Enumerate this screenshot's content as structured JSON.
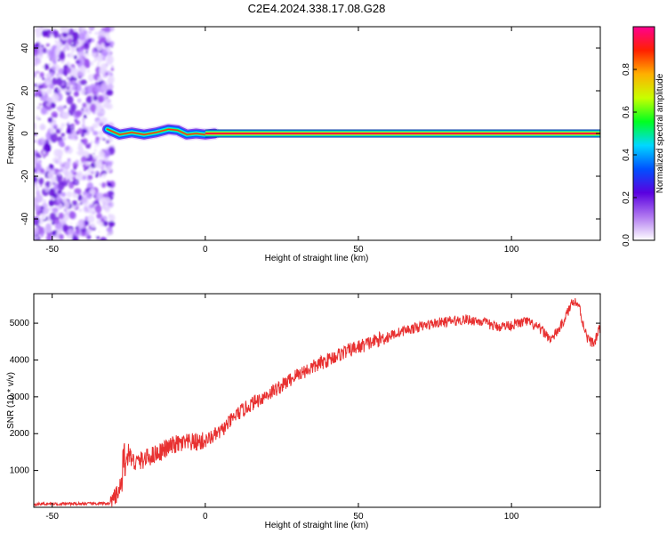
{
  "figure_title": "C2E4.2024.338.17.08.G28",
  "chart_data": [
    {
      "type": "heatmap",
      "xlabel": "Height of straight line (km)",
      "ylabel": "Frequency (Hz)",
      "xlim": [
        -56,
        129
      ],
      "ylim": [
        -50,
        50
      ],
      "x_ticks": [
        -50,
        0,
        50,
        100
      ],
      "x_tick_labels": [
        "-50",
        "0",
        "50",
        "100"
      ],
      "y_ticks": [
        -40,
        -20,
        0,
        20,
        40
      ],
      "y_tick_labels": [
        "-40",
        "-20",
        "0",
        "20",
        "40"
      ],
      "colorbar": {
        "label": "Normalized spectral amplitude",
        "range": [
          0,
          1
        ],
        "ticks": [
          0,
          0.2,
          0.4,
          0.6,
          0.8
        ],
        "tick_labels": [
          "0.0",
          "0.2",
          "0.4",
          "0.6",
          "0.8"
        ],
        "colormap": [
          "#ffffff",
          "#b078f0",
          "#5a00e0",
          "#0050ff",
          "#00d8ff",
          "#00ff20",
          "#c8ff00",
          "#ffb000",
          "#ff2000",
          "#ff0090"
        ]
      },
      "regions": [
        {
          "x_range": [
            -56,
            -32
          ],
          "freq_range": [
            -50,
            50
          ],
          "content": "noise",
          "amplitude": 0.15
        },
        {
          "x_range": [
            -32,
            0
          ],
          "freq_range": [
            -4,
            4
          ],
          "content": "carrier-wobble",
          "amplitude": 0.6
        },
        {
          "x_range": [
            0,
            129
          ],
          "freq_range": [
            -1.5,
            1.5
          ],
          "content": "carrier",
          "amplitude": 0.9
        }
      ],
      "carrier_wobble": [
        {
          "x": -32,
          "f": 2
        },
        {
          "x": -28,
          "f": -0.5
        },
        {
          "x": -24,
          "f": 0.5
        },
        {
          "x": -20,
          "f": -0.5
        },
        {
          "x": -16,
          "f": 0.5
        },
        {
          "x": -12,
          "f": 2
        },
        {
          "x": -9,
          "f": 1.5
        },
        {
          "x": -6,
          "f": -0.5
        },
        {
          "x": -3,
          "f": 0
        },
        {
          "x": 0,
          "f": -0.5
        },
        {
          "x": 3,
          "f": 0
        }
      ]
    },
    {
      "type": "line",
      "xlabel": "Height of straight line (km)",
      "ylabel": "SNR (10 * v/v)",
      "xlim": [
        -56,
        129
      ],
      "ylim": [
        0,
        5800
      ],
      "x_ticks": [
        -50,
        0,
        50,
        100
      ],
      "x_tick_labels": [
        "-50",
        "0",
        "50",
        "100"
      ],
      "y_ticks": [
        1000,
        2000,
        3000,
        4000,
        5000
      ],
      "y_tick_labels": [
        "1000",
        "2000",
        "3000",
        "4000",
        "5000"
      ],
      "color": "#e83030",
      "series": [
        {
          "x": [
            -56,
            -45,
            -35,
            -31,
            -29,
            -27,
            -26,
            -25,
            -24,
            -23,
            -20,
            -15,
            -10,
            -5,
            0,
            5,
            10,
            15,
            20,
            25,
            30,
            35,
            40,
            45,
            50,
            55,
            60,
            65,
            70,
            75,
            80,
            85,
            90,
            95,
            100,
            105,
            110,
            113,
            116,
            119,
            120,
            121,
            122,
            123,
            125,
            127,
            129
          ],
          "y": [
            90,
            95,
            100,
            110,
            300,
            700,
            1100,
            1500,
            1300,
            1200,
            1300,
            1500,
            1700,
            1750,
            1800,
            2050,
            2500,
            2800,
            3050,
            3300,
            3600,
            3800,
            4000,
            4200,
            4350,
            4500,
            4650,
            4800,
            4900,
            5000,
            5050,
            5100,
            5050,
            4900,
            4950,
            5050,
            4800,
            4550,
            4900,
            5400,
            5650,
            5550,
            5500,
            5100,
            4550,
            4450,
            4900
          ]
        }
      ]
    }
  ]
}
